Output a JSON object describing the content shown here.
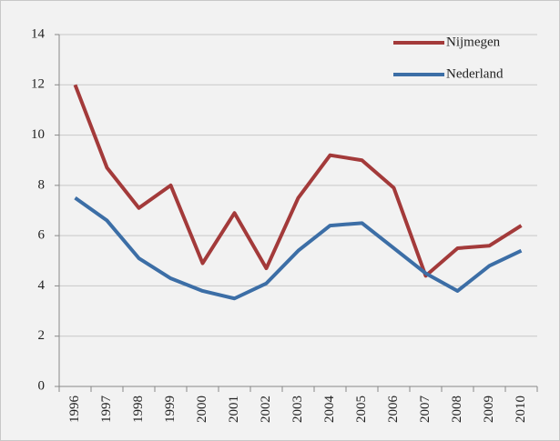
{
  "chart_data": {
    "type": "line",
    "categories": [
      "1996",
      "1997",
      "1998",
      "1999",
      "2000",
      "2001",
      "2002",
      "2003",
      "2004",
      "2005",
      "2006",
      "2007",
      "2008",
      "2009",
      "2010"
    ],
    "series": [
      {
        "name": "Nijmegen",
        "color": "#a33a3a",
        "values": [
          12.0,
          8.7,
          7.1,
          8.0,
          4.9,
          6.9,
          4.7,
          7.5,
          9.2,
          9.0,
          7.9,
          4.4,
          5.5,
          5.6,
          6.4
        ]
      },
      {
        "name": "Nederland",
        "color": "#3c6ea6",
        "values": [
          7.5,
          6.6,
          5.1,
          4.3,
          3.8,
          3.5,
          4.1,
          5.4,
          6.4,
          6.5,
          5.5,
          4.5,
          3.8,
          4.8,
          5.4
        ]
      }
    ],
    "ylim": [
      0,
      14
    ],
    "yticks": [
      0,
      2,
      4,
      6,
      8,
      10,
      12,
      14
    ],
    "grid": true,
    "legend": "top-right"
  }
}
